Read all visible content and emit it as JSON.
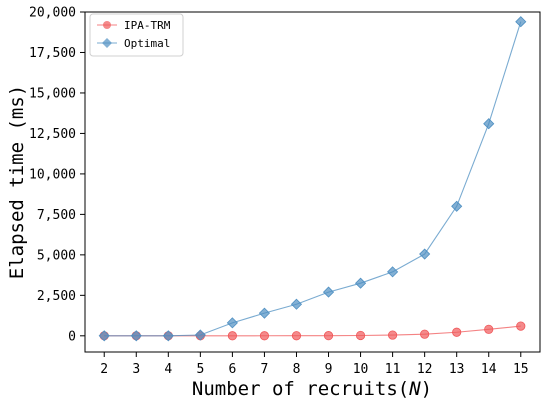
{
  "chart_data": {
    "type": "line",
    "x": [
      2,
      3,
      4,
      5,
      6,
      7,
      8,
      9,
      10,
      11,
      12,
      13,
      14,
      15
    ],
    "series": [
      {
        "name": "IPA-TRM",
        "color": "#f0585a",
        "marker": "circle",
        "values": [
          0,
          0,
          0,
          0,
          2,
          3,
          5,
          10,
          20,
          45,
          100,
          220,
          400,
          600
        ]
      },
      {
        "name": "Optimal",
        "color": "#4e8fc2",
        "marker": "diamond",
        "values": [
          0,
          0,
          0,
          50,
          800,
          1400,
          1950,
          2700,
          3250,
          3950,
          5050,
          8000,
          13100,
          19400
        ]
      }
    ],
    "xlabel_prefix": "Number of recruits(",
    "xlabel_var": "N",
    "xlabel_suffix": ")",
    "ylabel": "Elapsed time (ms)",
    "xlim": [
      1.4,
      15.6
    ],
    "ylim": [
      -1000,
      20000
    ],
    "yticks": [
      0,
      2500,
      5000,
      7500,
      10000,
      12500,
      15000,
      17500,
      20000
    ],
    "ytick_labels": [
      "0",
      "2,500",
      "5,000",
      "7,500",
      "10,000",
      "12,500",
      "15,000",
      "17,500",
      "20,000"
    ],
    "xticks": [
      2,
      3,
      4,
      5,
      6,
      7,
      8,
      9,
      10,
      11,
      12,
      13,
      14,
      15
    ],
    "legend_position": "upper-left",
    "grid": false
  }
}
